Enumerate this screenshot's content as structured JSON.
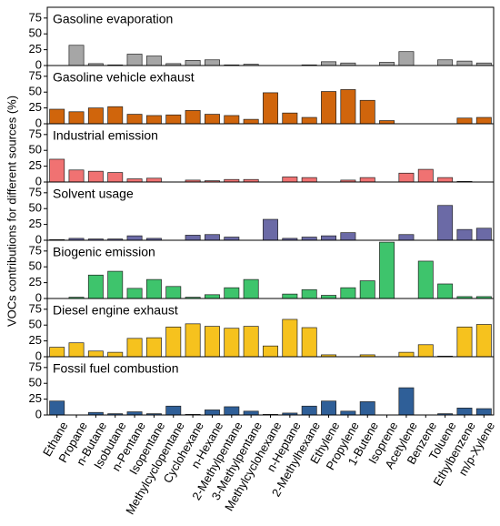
{
  "chart_data": [
    {
      "type": "bar",
      "title": "Gasoline evaporation",
      "y_label": "VOCs contributions for different sources (%)",
      "color": "#a6a6a6",
      "ylim": [
        0,
        92
      ],
      "yticks": [
        0,
        25,
        50,
        75
      ],
      "values": [
        0,
        32,
        3,
        1,
        18,
        15,
        3,
        8,
        9,
        1,
        2,
        0,
        0,
        1,
        6,
        4,
        0,
        5,
        22,
        0,
        9,
        7,
        4
      ]
    },
    {
      "type": "bar",
      "title": "Gasoline vehicle exhaust",
      "color": "#d0650c",
      "ylim": [
        0,
        92
      ],
      "yticks": [
        0,
        25,
        50,
        75
      ],
      "values": [
        23,
        19,
        25,
        27,
        15,
        13,
        14,
        21,
        15,
        13,
        7,
        49,
        17,
        10,
        51,
        54,
        37,
        5,
        0,
        0,
        0,
        9,
        10
      ]
    },
    {
      "type": "bar",
      "title": "Industrial emission",
      "color": "#f07272",
      "ylim": [
        0,
        92
      ],
      "yticks": [
        0,
        25,
        50,
        75
      ],
      "values": [
        36,
        19,
        17,
        15,
        5,
        6,
        0,
        3,
        2,
        4,
        4,
        0,
        8,
        7,
        0,
        3,
        7,
        0,
        14,
        20,
        7,
        1,
        0
      ]
    },
    {
      "type": "bar",
      "title": "Solvent usage",
      "color": "#6b6aa6",
      "ylim": [
        0,
        92
      ],
      "yticks": [
        0,
        25,
        50,
        75
      ],
      "values": [
        1,
        3,
        2,
        2,
        7,
        3,
        0,
        8,
        9,
        5,
        0,
        33,
        3,
        5,
        7,
        12,
        0,
        0,
        9,
        0,
        55,
        17,
        19
      ]
    },
    {
      "type": "bar",
      "title": "Biogenic emission",
      "color": "#3ec46c",
      "ylim": [
        0,
        92
      ],
      "yticks": [
        0,
        25,
        50,
        75
      ],
      "values": [
        0,
        2,
        37,
        43,
        16,
        30,
        19,
        2,
        6,
        17,
        30,
        0,
        7,
        14,
        5,
        17,
        28,
        89,
        0,
        59,
        23,
        3,
        3
      ]
    },
    {
      "type": "bar",
      "title": "Diesel engine exhaust",
      "color": "#f6c21e",
      "ylim": [
        0,
        92
      ],
      "yticks": [
        0,
        25,
        50,
        75
      ],
      "values": [
        15,
        22,
        9,
        7,
        29,
        30,
        47,
        52,
        48,
        45,
        48,
        17,
        59,
        46,
        3,
        0,
        3,
        0,
        7,
        19,
        1,
        47,
        51
      ]
    },
    {
      "type": "bar",
      "title": "Fossil fuel combustion",
      "color": "#2f5f98",
      "ylim": [
        0,
        92
      ],
      "yticks": [
        0,
        25,
        50,
        75
      ],
      "values": [
        22,
        0,
        4,
        2,
        5,
        2,
        14,
        1,
        8,
        13,
        6,
        1,
        3,
        14,
        22,
        6,
        21,
        0,
        43,
        0,
        2,
        11,
        10
      ],
      "categories": [
        "Ethane",
        "Propane",
        "n-Butane",
        "Isobutane",
        "n-Pentane",
        "Isopentane",
        "Methylcyclopentane",
        "Cyclohexane",
        "n-Hexane",
        "2-Methylpentane",
        "3-Methylpentane",
        "Methylcyclohexane",
        "n-Heptane",
        "2-Methylhexane",
        "Ethylene",
        "Propylene",
        "1-Butene",
        "Isoprene",
        "Acetylene",
        "Benzene",
        "Toluene",
        "Ethylbenzene",
        "m/p-Xylene"
      ]
    }
  ]
}
